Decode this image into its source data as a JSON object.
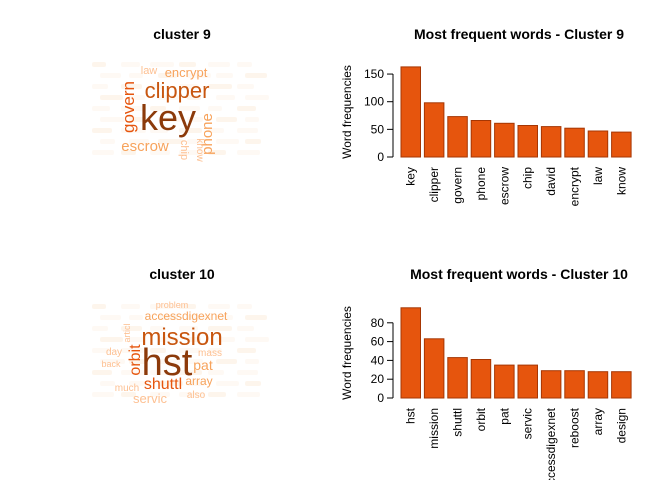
{
  "panels": [
    {
      "title": "cluster 9"
    },
    {
      "title": "cluster 10"
    }
  ],
  "wordclouds": [
    {
      "words": [
        {
          "text": "key",
          "level": 5
        },
        {
          "text": "clipper",
          "level": 4
        },
        {
          "text": "govern",
          "level": 3
        },
        {
          "text": "phone",
          "level": 2
        },
        {
          "text": "escrow",
          "level": 2
        },
        {
          "text": "encrypt",
          "level": 2
        },
        {
          "text": "law",
          "level": 1
        },
        {
          "text": "chip",
          "level": 1
        },
        {
          "text": "know",
          "level": 1
        }
      ]
    },
    {
      "words": [
        {
          "text": "hst",
          "level": 5
        },
        {
          "text": "mission",
          "level": 4
        },
        {
          "text": "shuttl",
          "level": 3
        },
        {
          "text": "orbit",
          "level": 3
        },
        {
          "text": "accessdigexnet",
          "level": 2
        },
        {
          "text": "pat",
          "level": 2
        },
        {
          "text": "array",
          "level": 2
        },
        {
          "text": "servic",
          "level": 1
        },
        {
          "text": "mass",
          "level": 1
        },
        {
          "text": "day",
          "level": 1
        },
        {
          "text": "back",
          "level": 1
        },
        {
          "text": "much",
          "level": 1
        },
        {
          "text": "also",
          "level": 1
        },
        {
          "text": "articl",
          "level": 1
        },
        {
          "text": "problem",
          "level": 1
        }
      ]
    }
  ],
  "colors": {
    "bar_fill": "#e6550d",
    "bar_border": "#a63603",
    "wc_level": [
      "#fdd9b8",
      "#fdc092",
      "#f7a35c",
      "#e6550d",
      "#c8560f",
      "#8c3a0a"
    ]
  },
  "chart_data": [
    {
      "type": "bar",
      "title": "Most frequent words - Cluster  9",
      "xlabel": "",
      "ylabel": "Word frequencies",
      "categories": [
        "key",
        "clipper",
        "govern",
        "phone",
        "escrow",
        "chip",
        "david",
        "encrypt",
        "law",
        "know"
      ],
      "values": [
        163,
        98,
        73,
        66,
        61,
        57,
        55,
        52,
        47,
        45
      ],
      "ylim": [
        0,
        170
      ],
      "yticks": [
        0,
        50,
        100,
        150
      ]
    },
    {
      "type": "bar",
      "title": "Most frequent words - Cluster  10",
      "xlabel": "",
      "ylabel": "Word frequencies",
      "categories": [
        "hst",
        "mission",
        "shuttl",
        "orbit",
        "pat",
        "servic",
        "accessdigexnet",
        "reboost",
        "array",
        "design"
      ],
      "values": [
        96,
        63,
        43,
        41,
        35,
        35,
        29,
        29,
        28,
        28
      ],
      "ylim": [
        0,
        100
      ],
      "yticks": [
        0,
        20,
        40,
        60,
        80
      ]
    }
  ]
}
